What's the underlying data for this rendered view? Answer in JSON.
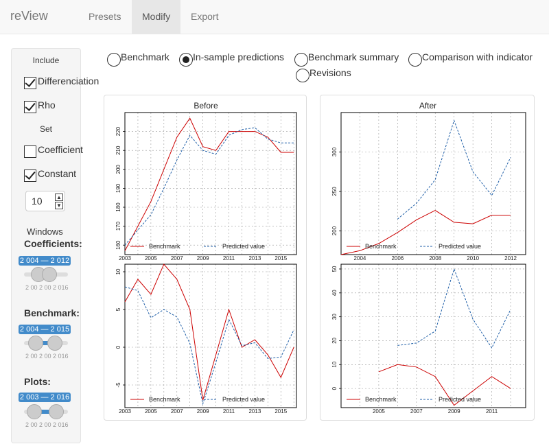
{
  "nav": {
    "brand": "reView",
    "tabs": [
      "Presets",
      "Modify",
      "Export"
    ],
    "active": "Modify"
  },
  "sidebar": {
    "include_heading": "Include",
    "differenciation_label": "Differenciation",
    "differenciation_checked": true,
    "rho_label": "Rho",
    "rho_checked": true,
    "set_heading": "Set",
    "coefficient_label": "Coefficient",
    "coefficient_checked": false,
    "constant_label": "Constant",
    "constant_checked": true,
    "constant_value": "10",
    "windows_heading": "Windows",
    "coefficients_heading": "Coefficients:",
    "coefficients_range": "2 004 — 2 012",
    "benchmark_heading": "Benchmark:",
    "benchmark_range": "2 004 — 2 015",
    "plots_heading": "Plots:",
    "plots_range": "2 003 — 2 016",
    "slider_tick_labels": [
      "2 003",
      "2 016"
    ],
    "coefficients_tick_labels": [
      "2 00",
      "2 00",
      "2 016"
    ],
    "benchmark_tick_labels": [
      "2 00",
      "2 00",
      "2 016"
    ],
    "plots_tick_labels": [
      "2 00",
      "2 00",
      "2 016"
    ]
  },
  "view_options": {
    "options": [
      "Benchmark",
      "In-sample predictions",
      "Benchmark summary",
      "Comparison with indicator",
      "Revisions"
    ],
    "selected": "In-sample predictions"
  },
  "panels": {
    "before_title": "Before",
    "after_title": "After"
  },
  "chart_data": [
    {
      "type": "line",
      "panel": "Before",
      "title": "Before",
      "x": [
        2003,
        2004,
        2005,
        2006,
        2007,
        2008,
        2009,
        2010,
        2011,
        2012,
        2013,
        2014,
        2015,
        2016
      ],
      "series": [
        {
          "name": "Benchmark",
          "color": "#cc0000",
          "values": [
            157,
            170,
            183,
            200,
            217,
            227,
            212,
            210,
            220,
            220,
            220,
            217,
            209,
            209
          ]
        },
        {
          "name": "Predicted value",
          "color": "#1f5fa8",
          "values": [
            160,
            168,
            176,
            190,
            205,
            218,
            210,
            208,
            218,
            221,
            222,
            216,
            214,
            214
          ]
        }
      ],
      "ylim": [
        155,
        230
      ],
      "yticks": [
        160,
        170,
        180,
        190,
        200,
        210,
        220
      ],
      "xticks": [
        2003,
        2005,
        2007,
        2009,
        2011,
        2013,
        2015
      ],
      "grid": true,
      "legend": "bottom"
    },
    {
      "type": "line",
      "panel": "Before",
      "x": [
        2003,
        2004,
        2005,
        2006,
        2007,
        2008,
        2009,
        2010,
        2011,
        2012,
        2013,
        2014,
        2015,
        2016
      ],
      "series": [
        {
          "name": "Benchmark",
          "color": "#cc0000",
          "values": [
            6,
            9,
            7,
            11,
            9,
            5,
            -7,
            -1,
            5,
            0,
            1,
            -1,
            -4,
            0
          ]
        },
        {
          "name": "Predicted value",
          "color": "#1f5fa8",
          "values": [
            8,
            7.5,
            3.9,
            5,
            4,
            0.5,
            -7.5,
            -2,
            3.7,
            0.2,
            0.6,
            -1.5,
            -1.3,
            2.3
          ]
        }
      ],
      "ylim": [
        -8,
        11
      ],
      "yticks": [
        -5,
        0,
        5,
        10
      ],
      "xticks": [
        2003,
        2005,
        2007,
        2009,
        2011,
        2013,
        2015
      ],
      "grid": true,
      "legend": "bottom"
    },
    {
      "type": "line",
      "panel": "After",
      "title": "After",
      "x": [
        2003,
        2004,
        2005,
        2006,
        2007,
        2008,
        2009,
        2010,
        2011,
        2012
      ],
      "series": [
        {
          "name": "Benchmark",
          "color": "#cc0000",
          "values": [
            170,
            175,
            184,
            198,
            214,
            226,
            211,
            209,
            220,
            220
          ]
        },
        {
          "name": "Predicted value",
          "color": "#1f5fa8",
          "values": [
            null,
            null,
            null,
            215,
            235,
            265,
            340,
            275,
            245,
            293
          ]
        }
      ],
      "ylim": [
        170,
        350
      ],
      "yticks": [
        200,
        250,
        300
      ],
      "xticks": [
        2004,
        2006,
        2008,
        2010,
        2012
      ],
      "grid": true,
      "legend": "bottom"
    },
    {
      "type": "line",
      "panel": "After",
      "x": [
        2003,
        2004,
        2005,
        2006,
        2007,
        2008,
        2009,
        2010,
        2011,
        2012
      ],
      "series": [
        {
          "name": "Benchmark",
          "color": "#cc0000",
          "values": [
            null,
            null,
            7,
            10,
            9,
            5,
            -7,
            -1,
            5,
            0
          ]
        },
        {
          "name": "Predicted value",
          "color": "#1f5fa8",
          "values": [
            null,
            null,
            null,
            18,
            19,
            24,
            50,
            29,
            17,
            33
          ]
        }
      ],
      "ylim": [
        -8,
        52
      ],
      "yticks": [
        0,
        10,
        20,
        30,
        40,
        50
      ],
      "xticks": [
        2005,
        2007,
        2009,
        2011
      ],
      "grid": true,
      "legend": "bottom"
    }
  ]
}
